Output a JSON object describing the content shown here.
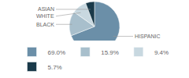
{
  "chart_data": {
    "type": "pie",
    "categories": [
      "HISPANIC",
      "BLACK",
      "WHITE",
      "ASIAN"
    ],
    "values": [
      69.0,
      15.9,
      9.4,
      5.7
    ],
    "value_labels": [
      "69.0%",
      "15.9%",
      "9.4%",
      "5.7%"
    ],
    "colors": [
      "#6b8fa8",
      "#a8bfcc",
      "#c8d8e0",
      "#1a3a4a"
    ],
    "legend": "bottom"
  }
}
